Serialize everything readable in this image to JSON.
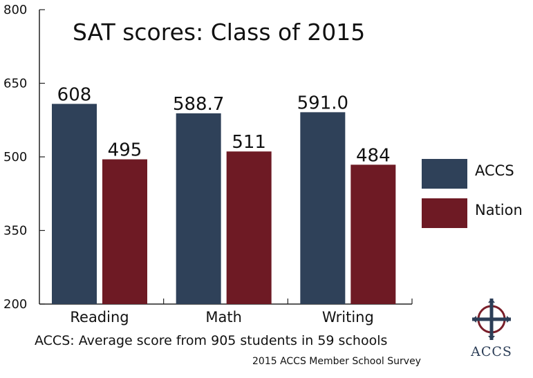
{
  "chart_data": {
    "type": "bar",
    "title": "SAT scores: Class of 2015",
    "categories": [
      "Reading",
      "Math",
      "Writing"
    ],
    "series": [
      {
        "name": "ACCS",
        "values": [
          608,
          588.7,
          591.0
        ],
        "labels": [
          "608",
          "588.7",
          "591.0"
        ],
        "color": "#2f4159"
      },
      {
        "name": "Nation",
        "values": [
          495,
          511,
          484
        ],
        "labels": [
          "495",
          "511",
          "484"
        ],
        "color": "#6e1a24"
      }
    ],
    "ylim": [
      200,
      800
    ],
    "yticks": [
      "200",
      "350",
      "500",
      "650",
      "800"
    ],
    "xlabel": "",
    "ylabel": "",
    "grid": false,
    "legend": "right"
  },
  "footnote": "ACCS: Average score from 905 students in 59 schools",
  "credit": "2015 ACCS Member School Survey",
  "logo": {
    "text": "ACCS",
    "icon": "cross-logo-icon"
  }
}
